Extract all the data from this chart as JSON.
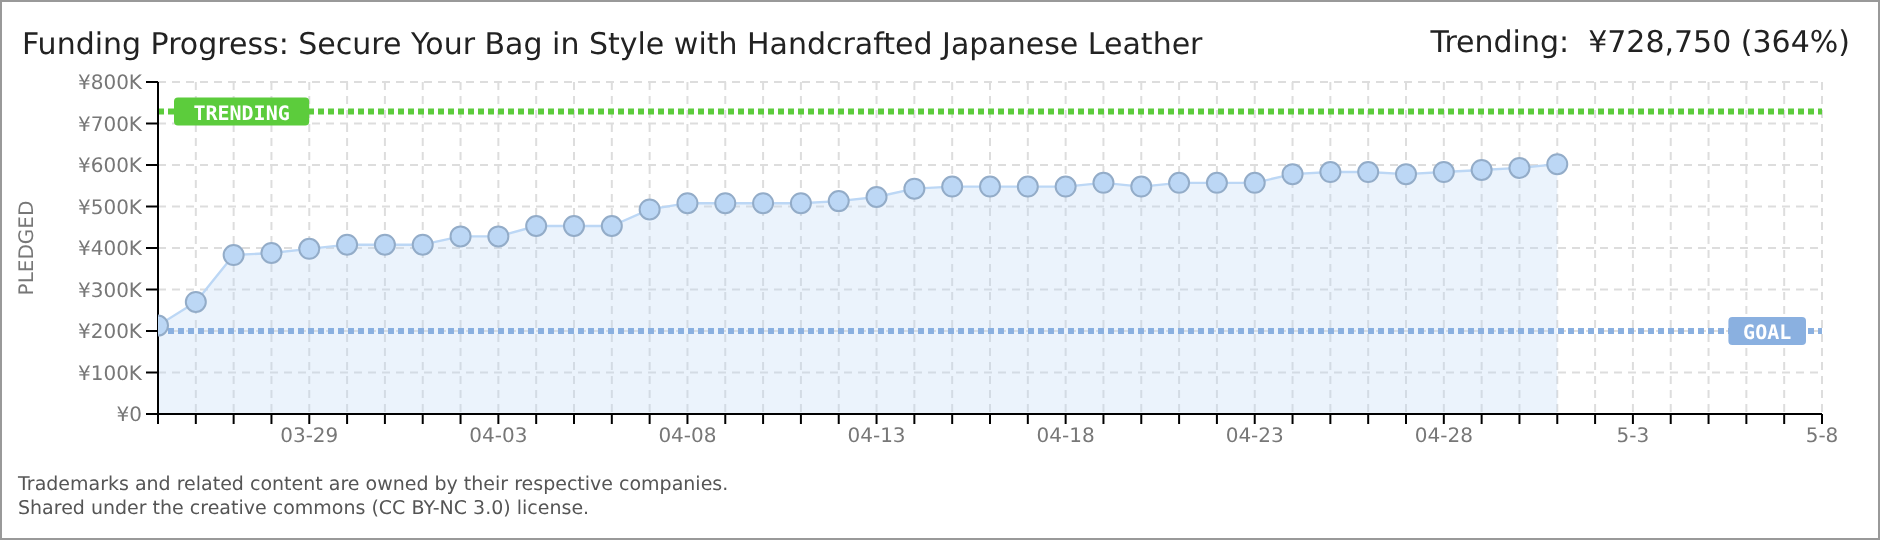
{
  "chart_data": {
    "type": "area",
    "title": "Funding Progress: Secure Your Bag in Style with Handcrafted Japanese Leather",
    "subtitle": "Trending:  ¥728,750 (364%)",
    "ylabel": "PLEDGED",
    "x": [
      "--03-25",
      "--03-26",
      "--03-27",
      "--03-28",
      "--03-29",
      "--03-30",
      "--03-31",
      "--04-01",
      "--04-02",
      "--04-03",
      "--04-04",
      "--04-05",
      "--04-06",
      "--04-07",
      "--04-08",
      "--04-09",
      "--04-10",
      "--04-11",
      "--04-12",
      "--04-13",
      "--04-14",
      "--04-15",
      "--04-16",
      "--04-17",
      "--04-18",
      "--04-19",
      "--04-20",
      "--04-21",
      "--04-22",
      "--04-23",
      "--04-24",
      "--04-25",
      "--04-26",
      "--04-27",
      "--04-28",
      "--04-29",
      "--04-30",
      "--05-01"
    ],
    "series": [
      {
        "color": "#bcd7f5",
        "values": [
          213000,
          270000,
          383000,
          388000,
          398000,
          408000,
          408000,
          408000,
          428000,
          428000,
          453000,
          453000,
          453000,
          493000,
          508000,
          508000,
          508000,
          508000,
          513000,
          523000,
          543000,
          548000,
          548000,
          548000,
          548000,
          557000,
          548000,
          557000,
          557000,
          557000,
          578000,
          583000,
          583000,
          578000,
          583000,
          588000,
          593000,
          602000
        ]
      }
    ],
    "xlim": [
      "--03-25",
      "--05-08"
    ],
    "xticks": [
      {
        "value": "--03-25",
        "label": null
      },
      {
        "value": "--03-26",
        "label": null
      },
      {
        "value": "--03-27",
        "label": null
      },
      {
        "value": "--03-28",
        "label": null
      },
      {
        "value": "--03-29",
        "label": "03-29"
      },
      {
        "value": "--03-30",
        "label": null
      },
      {
        "value": "--03-31",
        "label": null
      },
      {
        "value": "--04-01",
        "label": null
      },
      {
        "value": "--04-02",
        "label": null
      },
      {
        "value": "--04-03",
        "label": "04-03"
      },
      {
        "value": "--04-04",
        "label": null
      },
      {
        "value": "--04-05",
        "label": null
      },
      {
        "value": "--04-06",
        "label": null
      },
      {
        "value": "--04-07",
        "label": null
      },
      {
        "value": "--04-08",
        "label": "04-08"
      },
      {
        "value": "--04-09",
        "label": null
      },
      {
        "value": "--04-10",
        "label": null
      },
      {
        "value": "--04-11",
        "label": null
      },
      {
        "value": "--04-12",
        "label": null
      },
      {
        "value": "--04-13",
        "label": "04-13"
      },
      {
        "value": "--04-14",
        "label": null
      },
      {
        "value": "--04-15",
        "label": null
      },
      {
        "value": "--04-16",
        "label": null
      },
      {
        "value": "--04-17",
        "label": null
      },
      {
        "value": "--04-18",
        "label": "04-18"
      },
      {
        "value": "--04-19",
        "label": null
      },
      {
        "value": "--04-20",
        "label": null
      },
      {
        "value": "--04-21",
        "label": null
      },
      {
        "value": "--04-22",
        "label": null
      },
      {
        "value": "--04-23",
        "label": "04-23"
      },
      {
        "value": "--04-24",
        "label": null
      },
      {
        "value": "--04-25",
        "label": null
      },
      {
        "value": "--04-26",
        "label": null
      },
      {
        "value": "--04-27",
        "label": null
      },
      {
        "value": "--04-28",
        "label": "04-28"
      },
      {
        "value": "--04-29",
        "label": null
      },
      {
        "value": "--04-30",
        "label": null
      },
      {
        "value": "--05-01",
        "label": null
      },
      {
        "value": "--05-02",
        "label": null
      },
      {
        "value": "--05-03",
        "label": "5-3"
      },
      {
        "value": "--05-04",
        "label": null
      },
      {
        "value": "--05-05",
        "label": null
      },
      {
        "value": "--05-06",
        "label": null
      },
      {
        "value": "--05-07",
        "label": null
      },
      {
        "value": "--05-08",
        "label": "5-8"
      }
    ],
    "ylim": [
      0,
      800000
    ],
    "yticks": [
      {
        "value": 0,
        "label": "¥0"
      },
      {
        "value": 100000,
        "label": "¥100K"
      },
      {
        "value": 200000,
        "label": "¥200K"
      },
      {
        "value": 300000,
        "label": "¥300K"
      },
      {
        "value": 400000,
        "label": "¥400K"
      },
      {
        "value": 500000,
        "label": "¥500K"
      },
      {
        "value": 600000,
        "label": "¥600K"
      },
      {
        "value": 700000,
        "label": "¥700K"
      },
      {
        "value": 800000,
        "label": "¥800K"
      }
    ],
    "ref_lines": [
      {
        "axis": "y",
        "value": 728750,
        "label": "TRENDING",
        "color": "#5ccc3c",
        "line_style": "dotted"
      },
      {
        "axis": "y",
        "value": 200000,
        "label": "GOAL",
        "color": "#8ab0e0",
        "line_style": "dotted"
      }
    ],
    "grid": true,
    "marker": "circle",
    "line_style": "solid",
    "annotations": [
      "Trademarks and related content are owned by their respective companies.",
      "Shared under the creative commons (CC BY-NC 3.0) license."
    ]
  }
}
